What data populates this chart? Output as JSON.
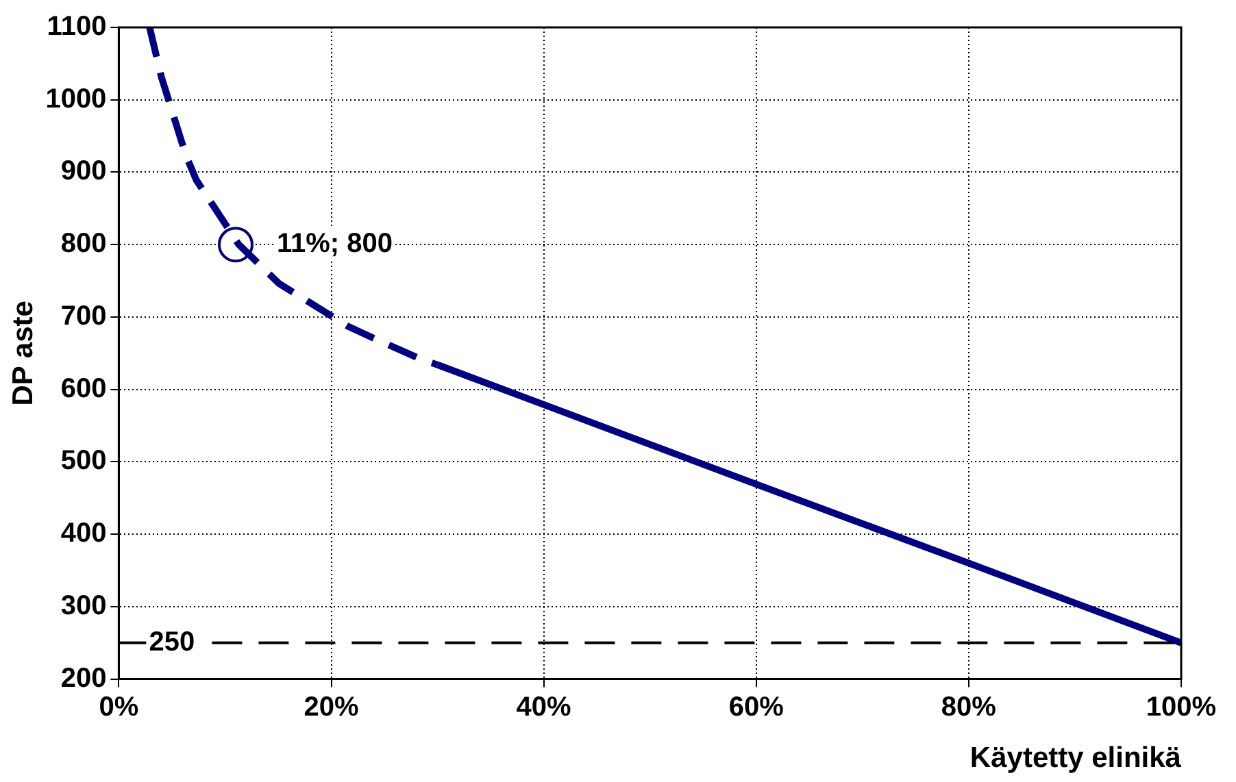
{
  "chart_data": {
    "type": "line",
    "xlabel": "Käytetty elinikä",
    "ylabel": "DP aste",
    "xlim": [
      0,
      100
    ],
    "xticks": [
      {
        "value": 0,
        "label": "0%"
      },
      {
        "value": 20,
        "label": "20%"
      },
      {
        "value": 40,
        "label": "40%"
      },
      {
        "value": 60,
        "label": "60%"
      },
      {
        "value": 80,
        "label": "80%"
      },
      {
        "value": 100,
        "label": "100%"
      }
    ],
    "ylim": [
      200,
      1100
    ],
    "yticks": [
      200,
      300,
      400,
      500,
      600,
      700,
      800,
      900,
      1000,
      1100
    ],
    "grid": true,
    "legend": false,
    "series": [
      {
        "type": "line",
        "line_style": "dashed",
        "color": "#000080",
        "x": [
          2.9,
          4.0,
          6.3,
          7.3,
          11.3,
          15.1,
          21.6,
          24.1,
          28.4,
          30
        ],
        "values": [
          1100,
          1032,
          924,
          889,
          800,
          746,
          687,
          670,
          642,
          634
        ]
      },
      {
        "type": "line",
        "line_style": "solid",
        "color": "#000080",
        "x": [
          30,
          40,
          60,
          80,
          100
        ],
        "values": [
          634,
          579,
          469,
          360,
          250
        ]
      },
      {
        "type": "scatter",
        "marker": "circle",
        "color": "#000080",
        "x": [
          11
        ],
        "values": [
          800
        ]
      }
    ],
    "annotations": [
      {
        "text": "11%; 800",
        "x": 11,
        "y": 800
      }
    ],
    "ref_lines": [
      {
        "axis": "y",
        "value": 250,
        "label": "250",
        "color": "#000000",
        "line_style": "dashed"
      }
    ]
  }
}
